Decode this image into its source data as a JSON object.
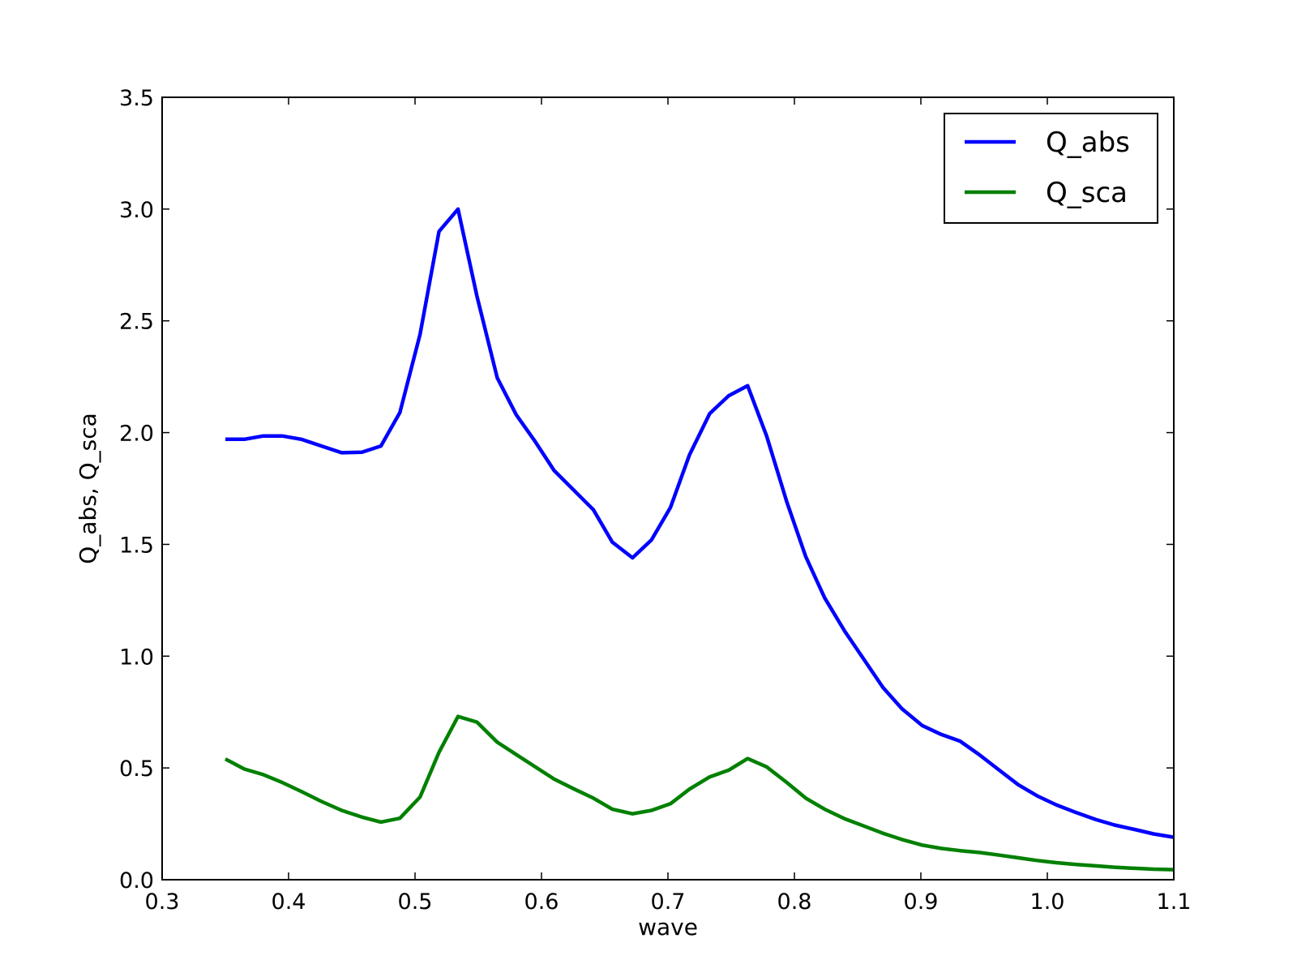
{
  "chart_data": {
    "type": "line",
    "title": "",
    "xlabel": "wave",
    "ylabel": "Q_abs, Q_sca",
    "xlim": [
      0.3,
      1.1
    ],
    "ylim": [
      0.0,
      3.5
    ],
    "xticks": [
      0.3,
      0.4,
      0.5,
      0.6,
      0.7,
      0.8,
      0.9,
      1.0,
      1.1
    ],
    "xtick_labels": [
      "0.3",
      "0.4",
      "0.5",
      "0.6",
      "0.7",
      "0.8",
      "0.9",
      "1.0",
      "1.1"
    ],
    "yticks": [
      0.0,
      0.5,
      1.0,
      1.5,
      2.0,
      2.5,
      3.0,
      3.5
    ],
    "ytick_labels": [
      "0.0",
      "0.5",
      "1.0",
      "1.5",
      "2.0",
      "2.5",
      "3.0",
      "3.5"
    ],
    "grid": false,
    "legend_position": "top-right",
    "x": [
      0.35,
      0.365,
      0.38,
      0.395,
      0.41,
      0.426,
      0.442,
      0.458,
      0.473,
      0.488,
      0.504,
      0.519,
      0.534,
      0.549,
      0.565,
      0.58,
      0.595,
      0.61,
      0.626,
      0.641,
      0.656,
      0.672,
      0.687,
      0.702,
      0.717,
      0.733,
      0.748,
      0.763,
      0.778,
      0.794,
      0.809,
      0.824,
      0.84,
      0.855,
      0.87,
      0.885,
      0.901,
      0.916,
      0.931,
      0.946,
      0.962,
      0.977,
      0.992,
      1.007,
      1.023,
      1.038,
      1.053,
      1.069,
      1.084,
      1.1
    ],
    "series": [
      {
        "name": "Q_abs",
        "color": "#0000ff",
        "values": [
          1.97,
          1.97,
          1.985,
          1.985,
          1.97,
          1.94,
          1.91,
          1.912,
          1.94,
          2.09,
          2.44,
          2.9,
          3.0,
          2.61,
          2.245,
          2.08,
          1.96,
          1.83,
          1.74,
          1.655,
          1.51,
          1.44,
          1.52,
          1.665,
          1.9,
          2.085,
          2.165,
          2.21,
          1.985,
          1.69,
          1.445,
          1.26,
          1.11,
          0.985,
          0.86,
          0.765,
          0.69,
          0.65,
          0.62,
          0.56,
          0.49,
          0.425,
          0.375,
          0.335,
          0.3,
          0.27,
          0.245,
          0.225,
          0.205,
          0.19
        ]
      },
      {
        "name": "Q_sca",
        "color": "#008000",
        "values": [
          0.54,
          0.495,
          0.47,
          0.435,
          0.395,
          0.35,
          0.31,
          0.28,
          0.258,
          0.275,
          0.37,
          0.57,
          0.73,
          0.705,
          0.615,
          0.56,
          0.505,
          0.45,
          0.405,
          0.365,
          0.315,
          0.295,
          0.31,
          0.34,
          0.405,
          0.46,
          0.49,
          0.542,
          0.505,
          0.435,
          0.365,
          0.315,
          0.272,
          0.24,
          0.208,
          0.18,
          0.155,
          0.14,
          0.13,
          0.122,
          0.11,
          0.098,
          0.086,
          0.076,
          0.068,
          0.062,
          0.056,
          0.051,
          0.047,
          0.045
        ]
      }
    ]
  }
}
